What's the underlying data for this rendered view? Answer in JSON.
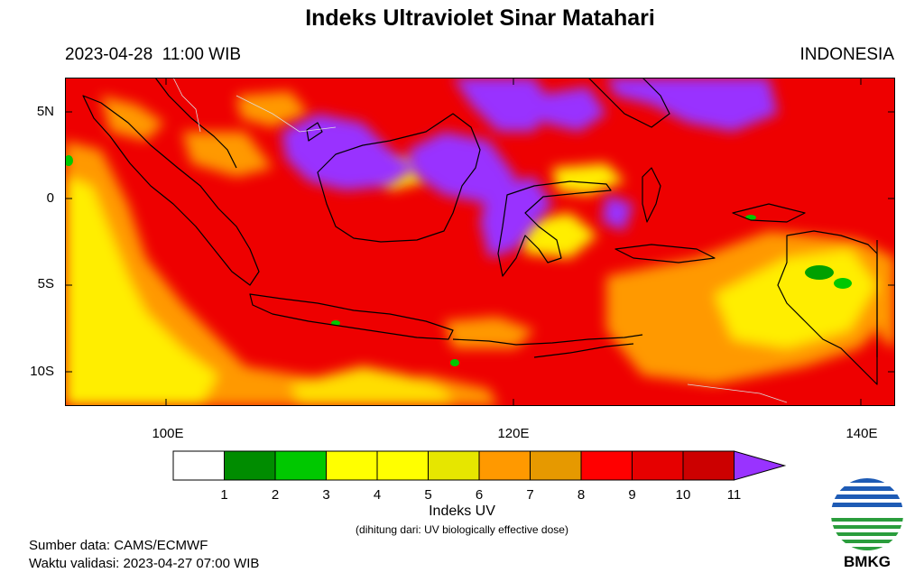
{
  "title": "Indeks Ultraviolet Sinar Matahari",
  "datetime": "2023-04-28  11:00 WIB",
  "region": "INDONESIA",
  "map": {
    "lat_ticks": [
      "5N",
      "0",
      "5S",
      "10S"
    ],
    "lon_ticks": [
      "100E",
      "120E",
      "140E"
    ],
    "lat_range": [
      -12,
      7
    ],
    "lon_range": [
      94.5,
      142
    ]
  },
  "colorbar": {
    "labels": [
      "1",
      "2",
      "3",
      "4",
      "5",
      "6",
      "7",
      "8",
      "9",
      "10",
      "11"
    ],
    "colors": [
      "#ffffff",
      "#008c00",
      "#00c800",
      "#ffff00",
      "#ffff00",
      "#e6e600",
      "#ff9900",
      "#e69900",
      "#ff0000",
      "#e60000",
      "#cc0000",
      "#9933ff"
    ],
    "title": "Indeks UV",
    "note": "(dihitung dari: UV biologically effective dose)"
  },
  "source": "Sumber data: CAMS/ECMWF",
  "validity": "Waktu validasi: 2023-04-27 07:00 WIB",
  "logo_text": "BMKG"
}
